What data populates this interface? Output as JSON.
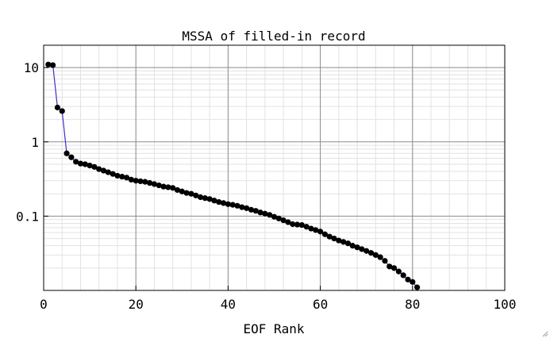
{
  "chart_data": {
    "type": "scatter",
    "title": "MSSA of filled-in record",
    "xlabel": "EOF Rank",
    "ylabel": "",
    "xlim": [
      0,
      100
    ],
    "ylim": [
      0.01,
      20
    ],
    "yscale": "log",
    "grid": true,
    "x_ticks": [
      0,
      20,
      40,
      60,
      80,
      100
    ],
    "x_tick_labels": [
      "0",
      "20",
      "40",
      "60",
      "80",
      "100"
    ],
    "y_ticks": [
      0.1,
      1,
      10
    ],
    "y_tick_labels": [
      "0.1",
      "1",
      "10"
    ],
    "line_color": "#3b2fc9",
    "marker_color": "#000000",
    "x": [
      1,
      2,
      3,
      4,
      5,
      6,
      7,
      8,
      9,
      10,
      11,
      12,
      13,
      14,
      15,
      16,
      17,
      18,
      19,
      20,
      21,
      22,
      23,
      24,
      25,
      26,
      27,
      28,
      29,
      30,
      31,
      32,
      33,
      34,
      35,
      36,
      37,
      38,
      39,
      40,
      41,
      42,
      43,
      44,
      45,
      46,
      47,
      48,
      49,
      50,
      51,
      52,
      53,
      54,
      55,
      56,
      57,
      58,
      59,
      60,
      61,
      62,
      63,
      64,
      65,
      66,
      67,
      68,
      69,
      70,
      71,
      72,
      73,
      74,
      75,
      76,
      77,
      78,
      79,
      80,
      81
    ],
    "y": [
      11,
      10.8,
      2.9,
      2.6,
      0.7,
      0.62,
      0.54,
      0.51,
      0.5,
      0.48,
      0.46,
      0.43,
      0.41,
      0.39,
      0.37,
      0.35,
      0.34,
      0.33,
      0.31,
      0.3,
      0.295,
      0.29,
      0.28,
      0.27,
      0.26,
      0.25,
      0.245,
      0.24,
      0.225,
      0.215,
      0.205,
      0.2,
      0.19,
      0.18,
      0.175,
      0.17,
      0.162,
      0.155,
      0.15,
      0.145,
      0.142,
      0.138,
      0.132,
      0.128,
      0.122,
      0.118,
      0.112,
      0.108,
      0.104,
      0.098,
      0.093,
      0.088,
      0.083,
      0.078,
      0.077,
      0.076,
      0.072,
      0.068,
      0.065,
      0.062,
      0.057,
      0.053,
      0.05,
      0.047,
      0.045,
      0.043,
      0.04,
      0.038,
      0.036,
      0.034,
      0.032,
      0.03,
      0.028,
      0.025,
      0.021,
      0.02,
      0.018,
      0.016,
      0.014,
      0.013,
      0.011
    ]
  }
}
